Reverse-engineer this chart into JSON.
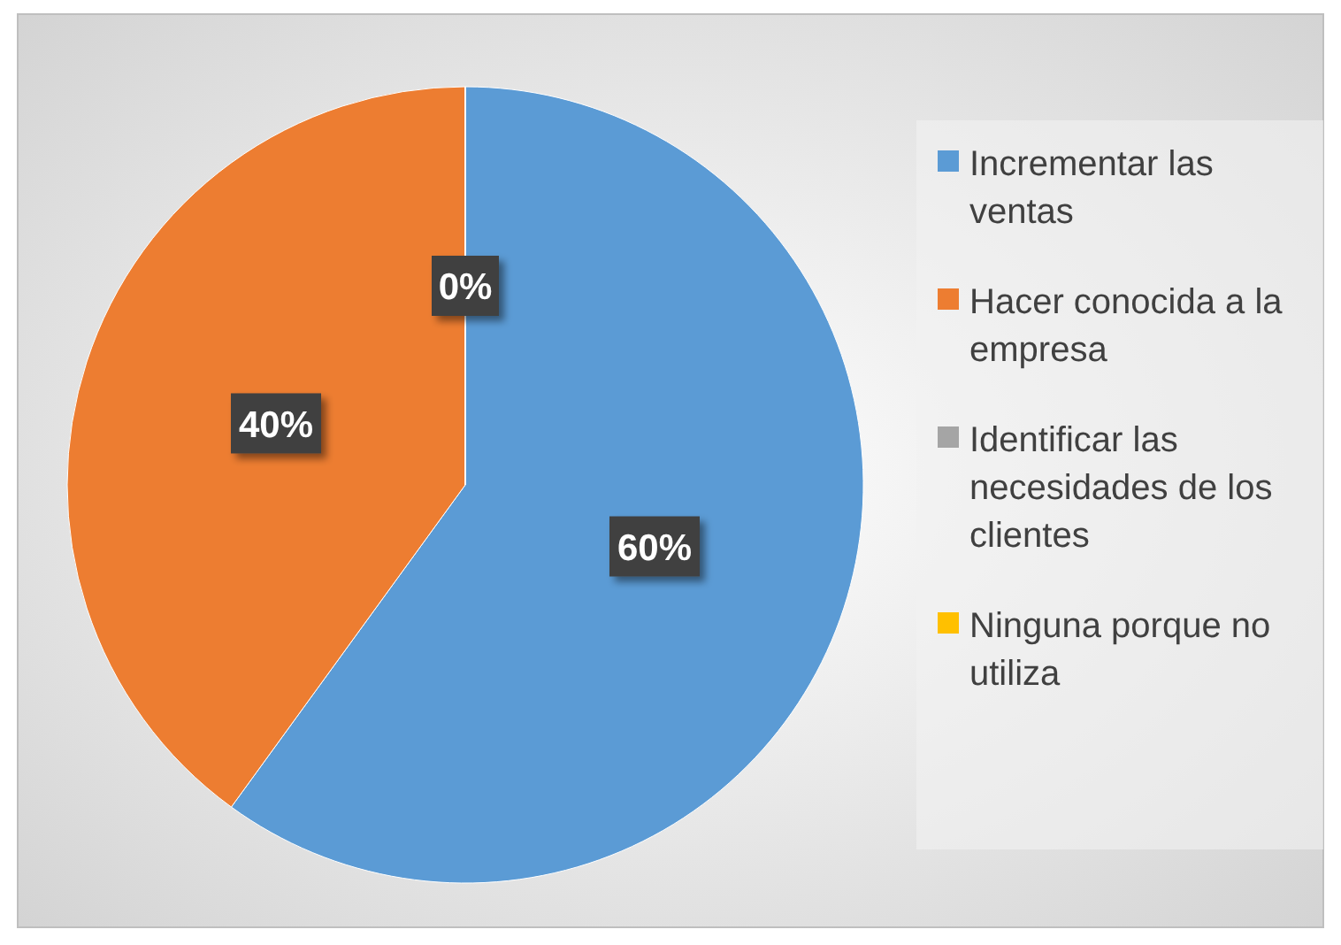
{
  "chart_data": {
    "type": "pie",
    "categories": [
      "Incrementar las ventas",
      "Hacer conocida a la empresa",
      "Identificar las necesidades de los clientes",
      "Ninguna porque no utiliza"
    ],
    "values": [
      60,
      40,
      0,
      0
    ],
    "colors": [
      "#5b9bd5",
      "#ed7d31",
      "#a5a5a5",
      "#ffc000"
    ],
    "value_labels": [
      "60%",
      "40%",
      "0%",
      null
    ],
    "legend": "right"
  }
}
